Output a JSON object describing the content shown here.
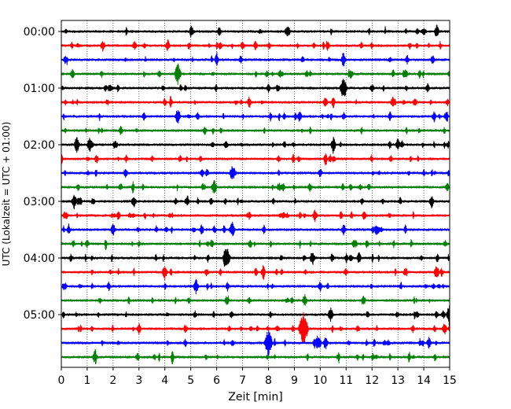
{
  "chart_data": {
    "type": "line",
    "title": "",
    "xlabel": "Zeit  [min]",
    "ylabel": "UTC (Lokalzeit = UTC + 01:00)",
    "xlim": [
      0,
      15
    ],
    "x_ticks": [
      "0",
      "1",
      "2",
      "3",
      "4",
      "5",
      "6",
      "7",
      "8",
      "9",
      "10",
      "11",
      "12",
      "13",
      "14",
      "15"
    ],
    "y_ticks": [
      {
        "label": "00:00",
        "row": 0
      },
      {
        "label": "01:00",
        "row": 4
      },
      {
        "label": "02:00",
        "row": 8
      },
      {
        "label": "03:00",
        "row": 12
      },
      {
        "label": "04:00",
        "row": 16
      },
      {
        "label": "05:00",
        "row": 20
      }
    ],
    "row_minutes": 15,
    "row_colors": [
      "#000000",
      "#ff0000",
      "#0000ff",
      "#008000"
    ],
    "vertical_grid": "dotted",
    "series": [
      {
        "row": 0,
        "start": "00:00",
        "events": [
          {
            "x": 6.1,
            "amp": 0.3
          },
          {
            "x": 8.7,
            "amp": 0.25
          },
          {
            "x": 14.5,
            "amp": 0.45
          }
        ]
      },
      {
        "row": 1,
        "start": "00:15",
        "events": [
          {
            "x": 1.6,
            "amp": 0.35
          },
          {
            "x": 7.0,
            "amp": 0.3
          },
          {
            "x": 7.5,
            "amp": 0.3
          },
          {
            "x": 12.0,
            "amp": 0.2
          }
        ]
      },
      {
        "row": 2,
        "start": "00:30",
        "events": [
          {
            "x": 6.0,
            "amp": 0.3
          },
          {
            "x": 10.9,
            "amp": 0.5
          }
        ]
      },
      {
        "row": 3,
        "start": "00:45",
        "events": [
          {
            "x": 4.5,
            "amp": 0.75
          },
          {
            "x": 13.3,
            "amp": 0.3
          }
        ]
      },
      {
        "row": 4,
        "start": "01:00",
        "events": [
          {
            "x": 10.9,
            "amp": 0.85
          },
          {
            "x": 8.0,
            "amp": 0.25
          }
        ]
      },
      {
        "row": 5,
        "start": "01:15",
        "events": [
          {
            "x": 4.0,
            "amp": 0.25
          },
          {
            "x": 10.2,
            "amp": 0.35
          },
          {
            "x": 12.8,
            "amp": 0.35
          }
        ]
      },
      {
        "row": 6,
        "start": "01:30",
        "events": [
          {
            "x": 4.5,
            "amp": 0.55
          },
          {
            "x": 9.2,
            "amp": 0.4
          },
          {
            "x": 14.4,
            "amp": 0.35
          }
        ]
      },
      {
        "row": 7,
        "start": "01:45",
        "events": [
          {
            "x": 2.3,
            "amp": 0.3
          }
        ]
      },
      {
        "row": 8,
        "start": "02:00",
        "events": [
          {
            "x": 0.6,
            "amp": 0.55
          },
          {
            "x": 1.1,
            "amp": 0.5
          },
          {
            "x": 10.5,
            "amp": 0.45
          },
          {
            "x": 13.0,
            "amp": 0.4
          }
        ]
      },
      {
        "row": 9,
        "start": "02:15",
        "events": [
          {
            "x": 3.5,
            "amp": 0.2
          },
          {
            "x": 10.2,
            "amp": 0.3
          }
        ]
      },
      {
        "row": 10,
        "start": "02:30",
        "events": [
          {
            "x": 6.6,
            "amp": 0.5
          },
          {
            "x": 10.0,
            "amp": 0.3
          }
        ]
      },
      {
        "row": 11,
        "start": "02:45",
        "events": [
          {
            "x": 5.9,
            "amp": 0.55
          },
          {
            "x": 9.6,
            "amp": 0.3
          },
          {
            "x": 14.9,
            "amp": 0.3
          }
        ]
      },
      {
        "row": 12,
        "start": "03:00",
        "events": [
          {
            "x": 0.5,
            "amp": 0.5
          },
          {
            "x": 2.8,
            "amp": 0.45
          },
          {
            "x": 14.3,
            "amp": 0.45
          }
        ]
      },
      {
        "row": 13,
        "start": "03:15",
        "events": [
          {
            "x": 2.2,
            "amp": 0.3
          },
          {
            "x": 9.8,
            "amp": 0.4
          },
          {
            "x": 11.7,
            "amp": 0.3
          }
        ]
      },
      {
        "row": 14,
        "start": "03:30",
        "events": [
          {
            "x": 2.0,
            "amp": 0.4
          },
          {
            "x": 6.6,
            "amp": 0.55
          },
          {
            "x": 10.9,
            "amp": 0.3
          }
        ]
      },
      {
        "row": 15,
        "start": "03:45",
        "events": [
          {
            "x": 11.3,
            "amp": 0.3
          }
        ]
      },
      {
        "row": 16,
        "start": "04:00",
        "events": [
          {
            "x": 6.4,
            "amp": 0.75
          },
          {
            "x": 9.7,
            "amp": 0.5
          },
          {
            "x": 11.5,
            "amp": 0.4
          }
        ]
      },
      {
        "row": 17,
        "start": "04:15",
        "events": [
          {
            "x": 4.0,
            "amp": 0.5
          },
          {
            "x": 7.8,
            "amp": 0.4
          },
          {
            "x": 14.5,
            "amp": 0.5
          }
        ]
      },
      {
        "row": 18,
        "start": "04:30",
        "events": [
          {
            "x": 5.2,
            "amp": 0.5
          },
          {
            "x": 10.0,
            "amp": 0.3
          }
        ]
      },
      {
        "row": 19,
        "start": "04:45",
        "events": [
          {
            "x": 9.4,
            "amp": 0.4
          },
          {
            "x": 1.5,
            "amp": 0.2
          }
        ]
      },
      {
        "row": 20,
        "start": "05:00",
        "events": [
          {
            "x": 10.4,
            "amp": 0.5
          },
          {
            "x": 15.0,
            "amp": 0.7
          }
        ]
      },
      {
        "row": 21,
        "start": "05:15",
        "events": [
          {
            "x": 9.35,
            "amp": 1.3
          },
          {
            "x": 3.0,
            "amp": 0.35
          },
          {
            "x": 14.8,
            "amp": 0.4
          }
        ]
      },
      {
        "row": 22,
        "start": "05:30",
        "events": [
          {
            "x": 8.0,
            "amp": 1.0
          },
          {
            "x": 9.9,
            "amp": 0.5
          },
          {
            "x": 10.2,
            "amp": 0.45
          },
          {
            "x": 14.2,
            "amp": 0.4
          }
        ]
      },
      {
        "row": 23,
        "start": "05:45",
        "events": [
          {
            "x": 1.3,
            "amp": 0.45
          },
          {
            "x": 10.7,
            "amp": 0.2
          }
        ]
      }
    ]
  }
}
